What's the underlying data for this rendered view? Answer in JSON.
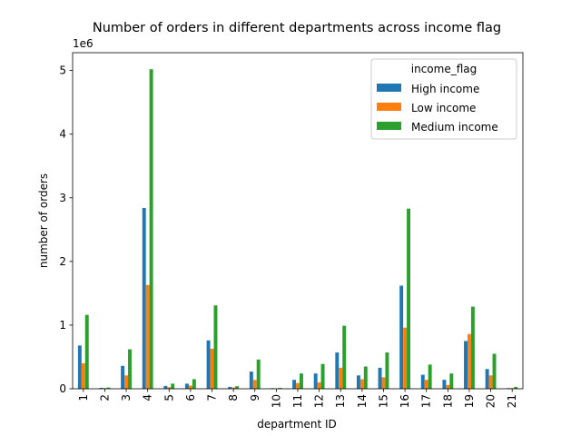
{
  "chart_data": {
    "type": "bar",
    "title": "Number of orders in different departments across income flag",
    "xlabel": "department ID",
    "ylabel": "number of orders",
    "y_multiplier_label": "1e6",
    "ylim": [
      0,
      5.28
    ],
    "yticks": [
      0,
      1,
      2,
      3,
      4,
      5
    ],
    "categories": [
      "1",
      "2",
      "3",
      "4",
      "5",
      "6",
      "7",
      "8",
      "9",
      "10",
      "11",
      "12",
      "13",
      "14",
      "15",
      "16",
      "17",
      "18",
      "19",
      "20",
      "21"
    ],
    "legend_title": "income_flag",
    "legend_position": "top-right",
    "grid": false,
    "series": [
      {
        "name": "High income",
        "color": "#1f77b4",
        "values": [
          0.68,
          0.015,
          0.36,
          2.84,
          0.045,
          0.08,
          0.76,
          0.03,
          0.27,
          0.01,
          0.14,
          0.24,
          0.57,
          0.21,
          0.33,
          1.62,
          0.22,
          0.14,
          0.75,
          0.31,
          0.01
        ]
      },
      {
        "name": "Low income",
        "color": "#ff7f0e",
        "values": [
          0.4,
          0.01,
          0.21,
          1.63,
          0.025,
          0.05,
          0.63,
          0.02,
          0.14,
          0.005,
          0.09,
          0.1,
          0.33,
          0.15,
          0.18,
          0.96,
          0.14,
          0.06,
          0.86,
          0.21,
          0.01
        ]
      },
      {
        "name": "Medium income",
        "color": "#2ca02c",
        "values": [
          1.16,
          0.02,
          0.62,
          5.02,
          0.08,
          0.15,
          1.31,
          0.04,
          0.46,
          0.015,
          0.24,
          0.39,
          0.99,
          0.35,
          0.57,
          2.83,
          0.38,
          0.24,
          1.29,
          0.55,
          0.03
        ]
      }
    ]
  }
}
